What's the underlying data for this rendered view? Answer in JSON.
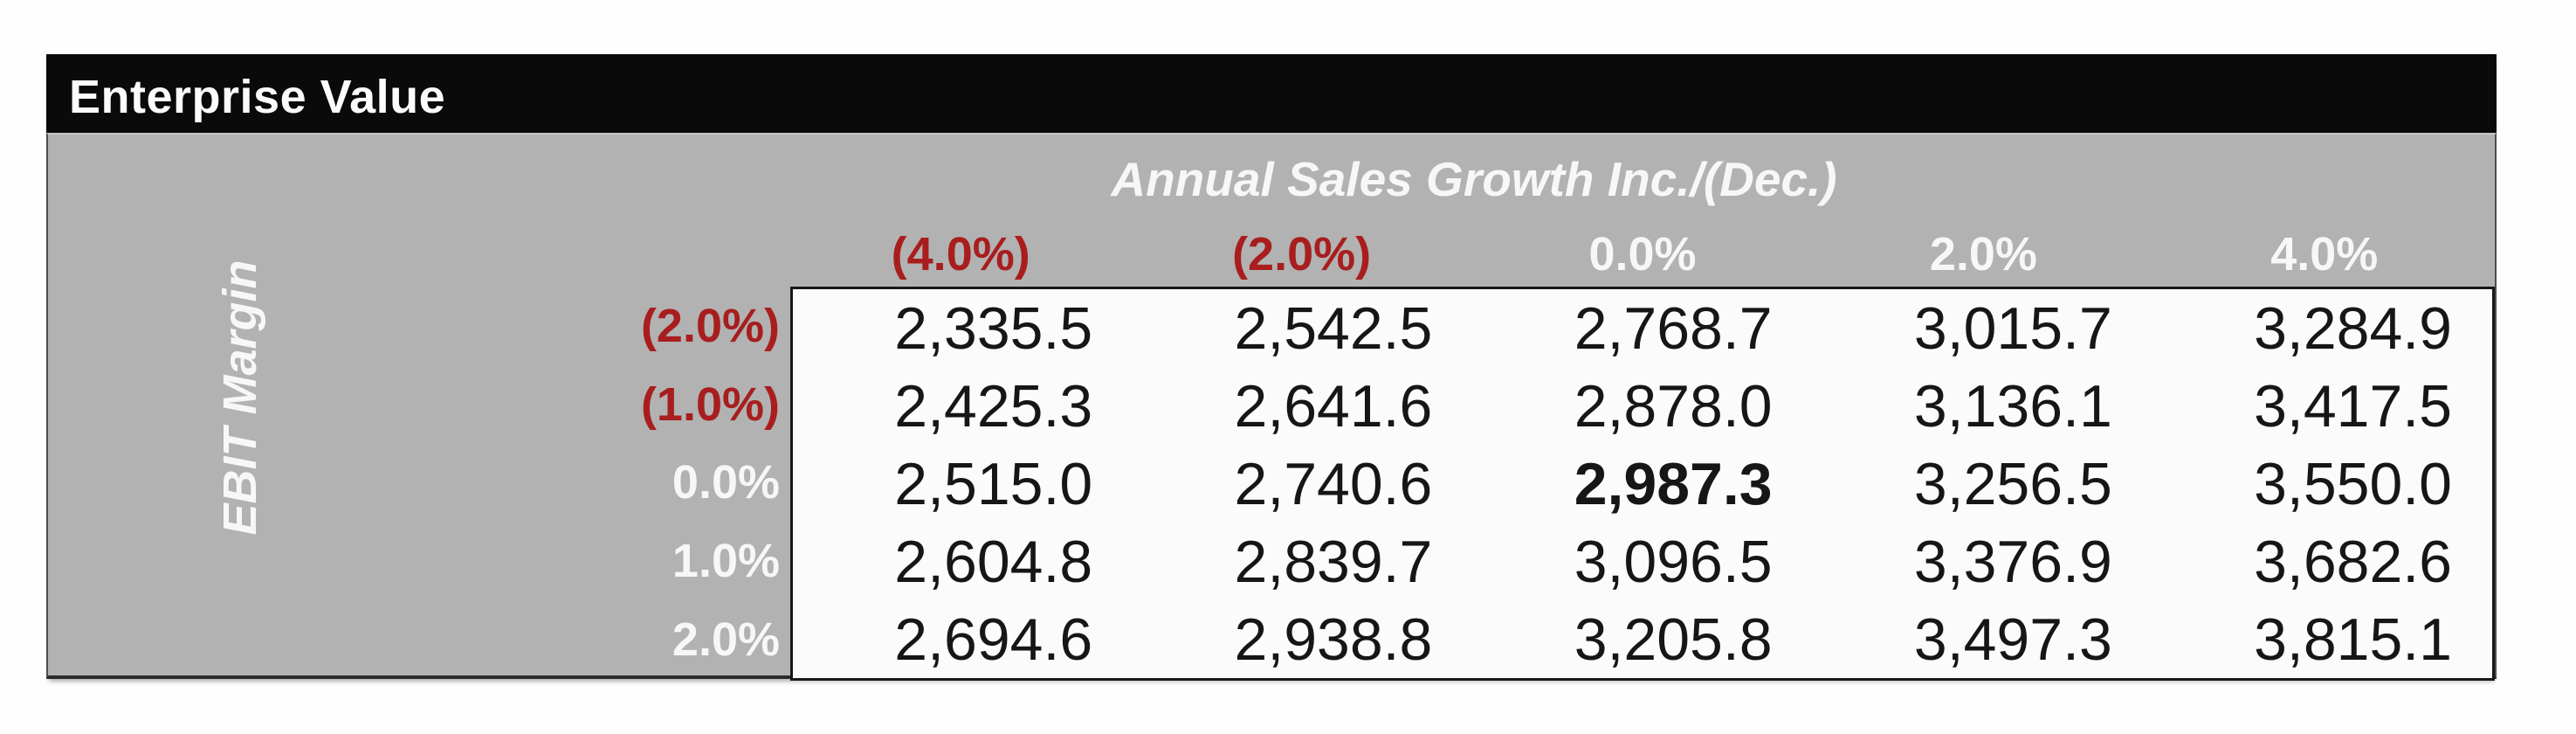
{
  "widget": {
    "title": "Enterprise Value",
    "column_axis_title": "Annual Sales Growth Inc./(Dec.)",
    "row_axis_title": "EBIT Margin"
  },
  "columns": [
    {
      "label": "(4.0%)",
      "negative": true
    },
    {
      "label": "(2.0%)",
      "negative": true
    },
    {
      "label": "0.0%",
      "negative": false
    },
    {
      "label": "2.0%",
      "negative": false
    },
    {
      "label": "4.0%",
      "negative": false
    }
  ],
  "rows": [
    {
      "label": "(2.0%)",
      "negative": true,
      "values": [
        "2,335.5",
        "2,542.5",
        "2,768.7",
        "3,015.7",
        "3,284.9"
      ]
    },
    {
      "label": "(1.0%)",
      "negative": true,
      "values": [
        "2,425.3",
        "2,641.6",
        "2,878.0",
        "3,136.1",
        "3,417.5"
      ]
    },
    {
      "label": "0.0%",
      "negative": false,
      "values": [
        "2,515.0",
        "2,740.6",
        "2,987.3",
        "3,256.5",
        "3,550.0"
      ]
    },
    {
      "label": "1.0%",
      "negative": false,
      "values": [
        "2,604.8",
        "2,839.7",
        "3,096.5",
        "3,376.9",
        "3,682.6"
      ]
    },
    {
      "label": "2.0%",
      "negative": false,
      "values": [
        "2,694.6",
        "2,938.8",
        "3,205.8",
        "3,497.3",
        "3,815.1"
      ]
    }
  ],
  "base_case": {
    "row": 2,
    "col": 2
  },
  "colors": {
    "title_bar_bg": "#0a0a0a",
    "panel_gray": "#b2b2b2",
    "negative_label": "#a81e1e",
    "positive_label": "#f7f7f7",
    "value_text": "#161616",
    "data_area_bg": "#fbfbfb"
  },
  "chart_data": {
    "type": "table",
    "title": "Enterprise Value",
    "column_axis": {
      "label": "Annual Sales Growth Inc./(Dec.)",
      "values_pct": [
        -4.0,
        -2.0,
        0.0,
        2.0,
        4.0
      ]
    },
    "row_axis": {
      "label": "EBIT Margin",
      "values_pct": [
        -2.0,
        -1.0,
        0.0,
        1.0,
        2.0
      ]
    },
    "values": [
      [
        2335.5,
        2542.5,
        2768.7,
        3015.7,
        3284.9
      ],
      [
        2425.3,
        2641.6,
        2878.0,
        3136.1,
        3417.5
      ],
      [
        2515.0,
        2740.6,
        2987.3,
        3256.5,
        3550.0
      ],
      [
        2604.8,
        2839.7,
        3096.5,
        3376.9,
        3682.6
      ],
      [
        2694.6,
        2938.8,
        3205.8,
        3497.3,
        3815.1
      ]
    ],
    "base_case_value": 2987.3
  }
}
